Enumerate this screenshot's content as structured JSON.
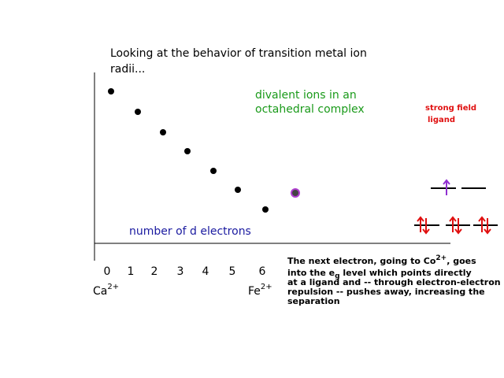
{
  "title_lines": [
    "Looking at the behavior of transition metal ion",
    "radii..."
  ],
  "complex_label_lines": [
    "divalent ions in an",
    "octahedral complex"
  ],
  "axis_label": "number of d electrons",
  "x_labels": [
    "0",
    "1",
    "2",
    "3",
    "4",
    "5",
    "6"
  ],
  "ion_left": {
    "symbol": "Ca",
    "charge": "2+"
  },
  "ion_right": {
    "symbol": "Fe",
    "charge": "2+"
  },
  "ligand_label_lines": [
    "strong field",
    "ligand"
  ],
  "annotation": {
    "line1": [
      "The next electron, going to Co",
      "2+",
      ", goes"
    ],
    "line2": [
      "into the e",
      "g",
      " level which points directly"
    ],
    "line3": "at a ligand and -- through electron-electron",
    "line4": "repulsion -- pushes away, increasing the",
    "line5": "separation"
  }
}
